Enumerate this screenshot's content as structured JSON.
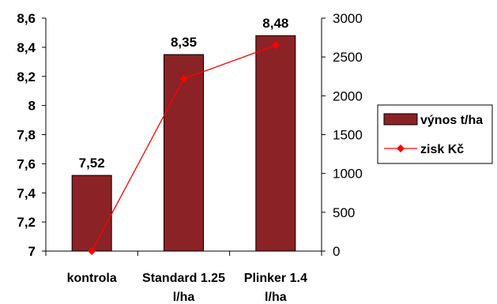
{
  "chart_data": {
    "type": "bar",
    "categories": [
      [
        "kontrola"
      ],
      [
        "Standard 1.25",
        "l/ha"
      ],
      [
        "Plinker 1.4",
        "l/ha"
      ]
    ],
    "series": [
      {
        "name": "výnos t/ha",
        "type": "bar",
        "axis": "left",
        "values": [
          7.52,
          8.35,
          8.48
        ],
        "data_labels": [
          "7,52",
          "8,35",
          "8,48"
        ],
        "color": "#8b2226"
      },
      {
        "name": "zisk Kč",
        "type": "line",
        "axis": "right",
        "values": [
          0,
          2220,
          2650
        ],
        "color": "#ff0000"
      }
    ],
    "y_left": {
      "min": 7,
      "max": 8.6,
      "ticks": [
        "7",
        "7,2",
        "7,4",
        "7,6",
        "7,8",
        "8",
        "8,2",
        "8,4",
        "8,6"
      ]
    },
    "y_right": {
      "min": 0,
      "max": 3000,
      "ticks": [
        "0",
        "500",
        "1000",
        "1500",
        "2000",
        "2500",
        "3000"
      ]
    },
    "grid": false,
    "legend_position": "right"
  }
}
